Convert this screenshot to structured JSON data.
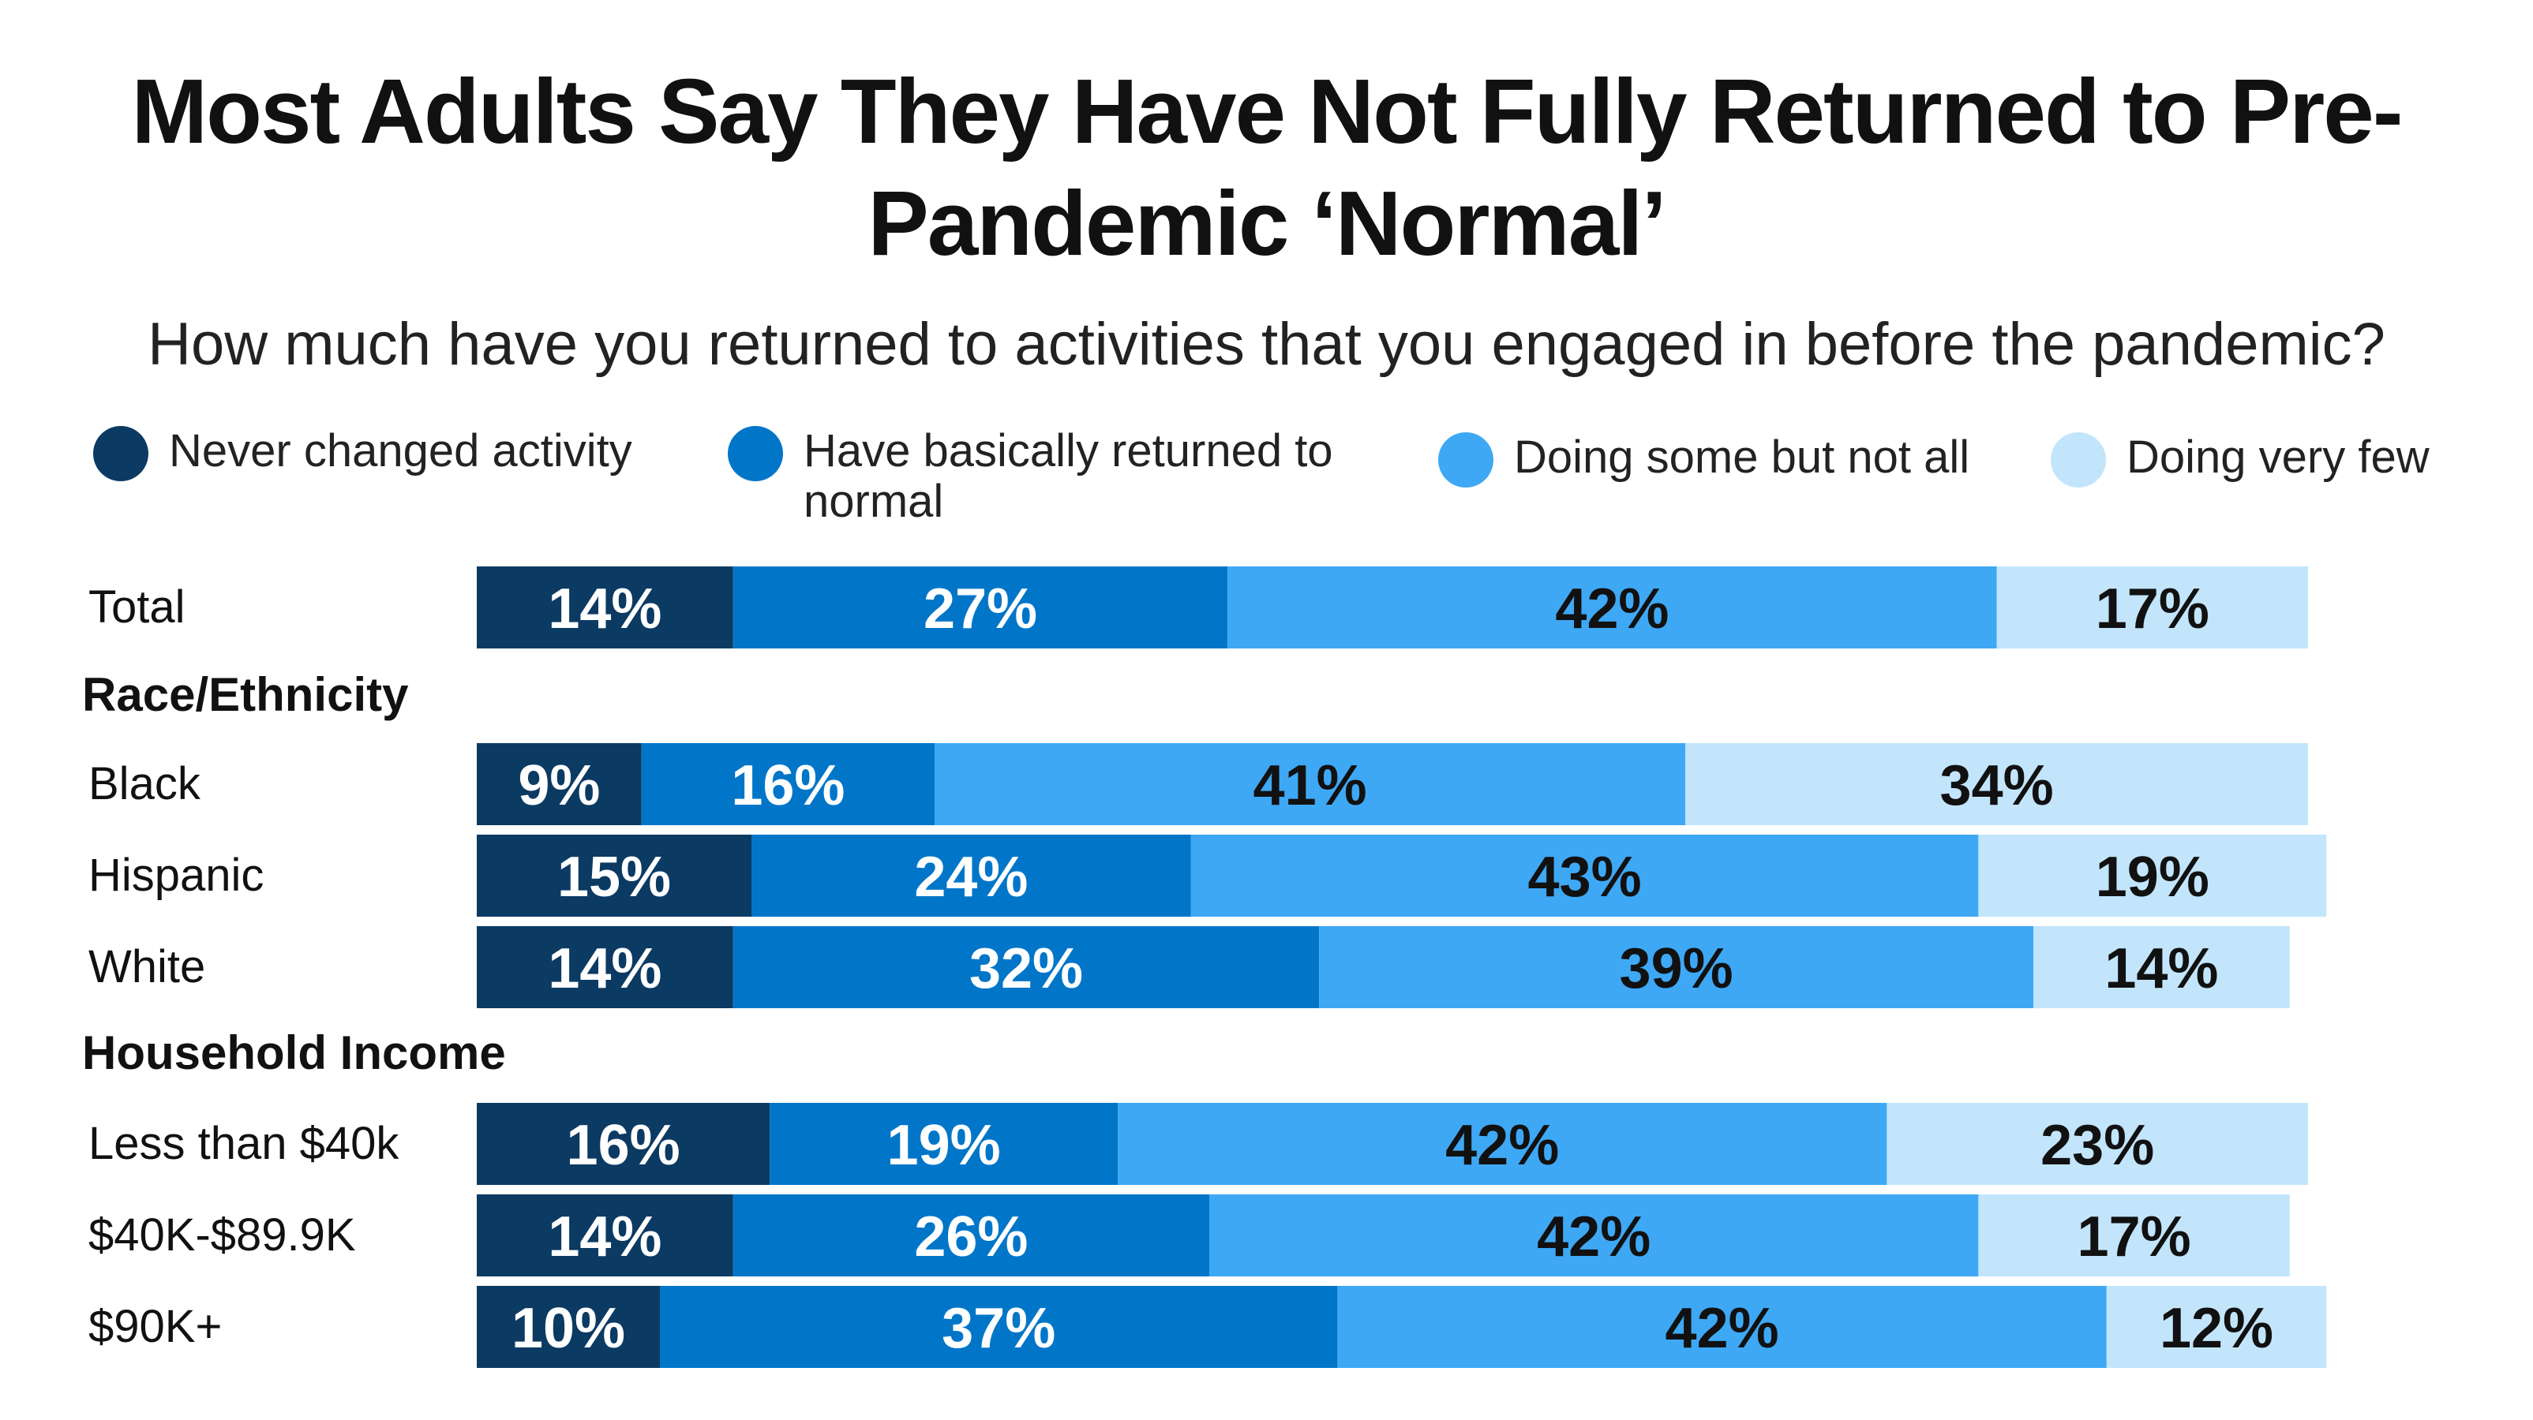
{
  "chart_data": {
    "type": "bar",
    "orientation": "horizontal",
    "stacked": true,
    "title": "Most Adults Say They Have Not Fully Returned to Pre-Pandemic ‘Normal’",
    "subtitle": "How much have you returned to activities that you engaged in before the pandemic?",
    "legend_position": "top",
    "grid": false,
    "series": [
      {
        "name": "Never changed activity",
        "color": "#0b3a63"
      },
      {
        "name": "Have basically returned to normal",
        "color": "#0176c9"
      },
      {
        "name": "Doing some but not all",
        "color": "#3ea8f5"
      },
      {
        "name": "Doing very few",
        "color": "#c2e5fc"
      }
    ],
    "rows": [
      {
        "type": "bar",
        "label": "Total",
        "values": [
          14,
          27,
          42,
          17
        ],
        "labels": [
          "14%",
          "27%",
          "42%",
          "17%"
        ]
      },
      {
        "type": "group",
        "label": "Race/Ethnicity"
      },
      {
        "type": "bar",
        "label": "Black",
        "values": [
          9,
          16,
          41,
          34
        ],
        "labels": [
          "9%",
          "16%",
          "41%",
          "34%"
        ]
      },
      {
        "type": "bar",
        "label": "Hispanic",
        "values": [
          15,
          24,
          43,
          19
        ],
        "labels": [
          "15%",
          "24%",
          "43%",
          "19%"
        ]
      },
      {
        "type": "bar",
        "label": "White",
        "values": [
          14,
          32,
          39,
          14
        ],
        "labels": [
          "14%",
          "32%",
          "39%",
          "14%"
        ]
      },
      {
        "type": "group",
        "label": "Household Income"
      },
      {
        "type": "bar",
        "label": "Less than $40k",
        "values": [
          16,
          19,
          42,
          23
        ],
        "labels": [
          "16%",
          "19%",
          "42%",
          "23%"
        ]
      },
      {
        "type": "bar",
        "label": "$40K-$89.9K",
        "values": [
          14,
          26,
          42,
          17
        ],
        "labels": [
          "14%",
          "26%",
          "42%",
          "17%"
        ]
      },
      {
        "type": "bar",
        "label": "$90K+",
        "values": [
          10,
          37,
          42,
          12
        ],
        "labels": [
          "10%",
          "37%",
          "42%",
          "12%"
        ]
      }
    ]
  }
}
